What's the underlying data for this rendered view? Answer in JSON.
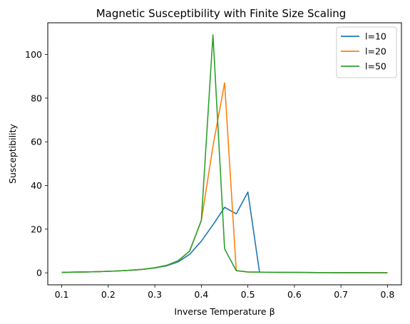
{
  "chart_data": {
    "type": "line",
    "title": "Magnetic Susceptibility with Finite Size Scaling",
    "xlabel": "Inverse Temperature β",
    "ylabel": "Susceptibility",
    "xlim": [
      0.07,
      0.83
    ],
    "ylim": [
      -5.5,
      114.5
    ],
    "xticks": [
      0.1,
      0.2,
      0.3,
      0.4,
      0.5,
      0.6,
      0.7,
      0.8
    ],
    "xtick_labels": [
      "0.1",
      "0.2",
      "0.3",
      "0.4",
      "0.5",
      "0.6",
      "0.7",
      "0.8"
    ],
    "yticks": [
      0,
      20,
      40,
      60,
      80,
      100
    ],
    "ytick_labels": [
      "0",
      "20",
      "40",
      "60",
      "80",
      "100"
    ],
    "grid": false,
    "legend_position": "top-right",
    "x": [
      0.1,
      0.125,
      0.15,
      0.175,
      0.2,
      0.225,
      0.25,
      0.275,
      0.3,
      0.325,
      0.35,
      0.375,
      0.4,
      0.425,
      0.45,
      0.475,
      0.5,
      0.525,
      0.55,
      0.575,
      0.6,
      0.625,
      0.65,
      0.675,
      0.7,
      0.725,
      0.75,
      0.775,
      0.8
    ],
    "series": [
      {
        "name": "l=10",
        "color": "#1f77b4",
        "values": [
          0.2,
          0.3,
          0.4,
          0.5,
          0.7,
          0.9,
          1.2,
          1.6,
          2.2,
          3.2,
          5.0,
          8.5,
          14.5,
          22,
          30,
          27,
          37,
          0.3,
          0.25,
          0.2,
          0.18,
          0.15,
          0.12,
          0.1,
          0.08,
          0.06,
          0.05,
          0.04,
          0.03
        ]
      },
      {
        "name": "l=20",
        "color": "#ff7f0e",
        "values": [
          0.2,
          0.3,
          0.4,
          0.5,
          0.7,
          0.9,
          1.2,
          1.6,
          2.3,
          3.4,
          5.5,
          10,
          24,
          58,
          87,
          1.0,
          0.4,
          0.3,
          0.25,
          0.2,
          0.18,
          0.15,
          0.12,
          0.1,
          0.08,
          0.06,
          0.05,
          0.04,
          0.03
        ]
      },
      {
        "name": "l=50",
        "color": "#2ca02c",
        "values": [
          0.2,
          0.3,
          0.4,
          0.5,
          0.7,
          0.9,
          1.2,
          1.6,
          2.3,
          3.4,
          5.5,
          10,
          24,
          109,
          11,
          1.0,
          0.4,
          0.3,
          0.25,
          0.2,
          0.18,
          0.15,
          0.12,
          0.1,
          0.08,
          0.06,
          0.05,
          0.04,
          0.03
        ]
      }
    ]
  }
}
